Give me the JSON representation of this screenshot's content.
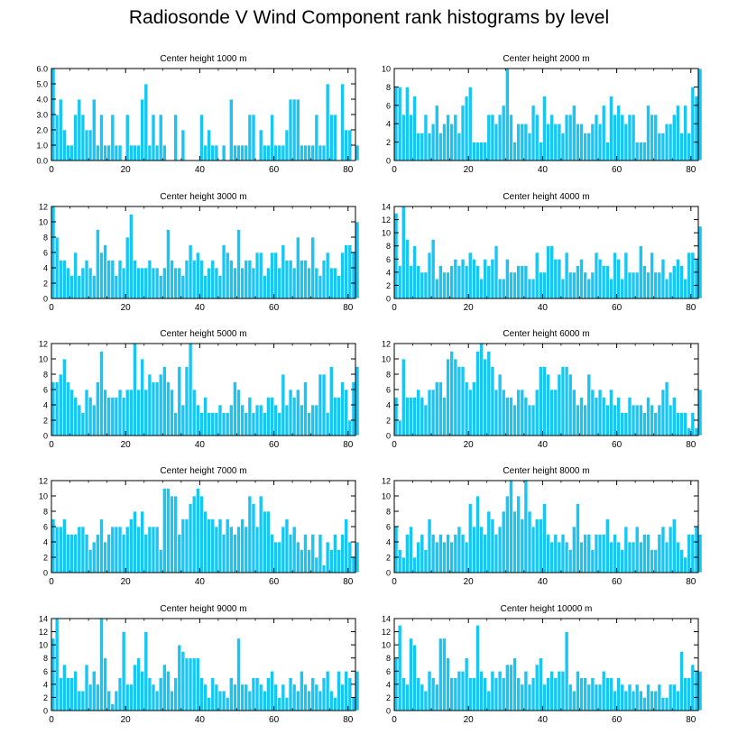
{
  "title": "Radiosonde V Wind Component rank histograms by level",
  "colors": {
    "bar": "#18c6f4",
    "bar_edge": "#ffffff",
    "axis": "#000000"
  },
  "chart_data": [
    {
      "type": "bar",
      "title": "Center height 1000 m",
      "xlim": [
        0,
        82
      ],
      "ylim": [
        0,
        6
      ],
      "xticks": [
        0,
        20,
        40,
        60,
        80
      ],
      "xtick_labels": [
        "0",
        "20",
        "40",
        "60",
        "80"
      ],
      "yticks": [
        0,
        1,
        2,
        3,
        4,
        5,
        6
      ],
      "ytick_labels": [
        "0.0",
        "1.0",
        "2.0",
        "3.0",
        "4.0",
        "5.0",
        "6.0"
      ],
      "values": [
        6,
        3,
        4,
        2,
        1,
        1,
        3,
        4,
        3,
        2,
        2,
        4,
        1,
        3,
        1,
        1,
        3,
        1,
        1,
        0,
        3,
        1,
        1,
        1,
        4,
        5,
        1,
        3,
        1,
        3,
        1,
        0,
        0,
        3,
        0,
        2,
        0,
        0,
        0,
        0,
        3,
        1,
        2,
        1,
        1,
        0,
        1,
        0,
        4,
        1,
        1,
        1,
        1,
        3,
        3,
        0,
        2,
        1,
        1,
        3,
        1,
        1,
        1,
        2,
        4,
        4,
        4,
        1,
        1,
        1,
        1,
        3,
        1,
        1,
        5,
        3,
        3,
        0,
        5,
        2,
        2,
        0,
        1
      ]
    },
    {
      "type": "bar",
      "title": "Center height 2000 m",
      "xlim": [
        0,
        82
      ],
      "ylim": [
        0,
        10
      ],
      "xticks": [
        0,
        20,
        40,
        60,
        80
      ],
      "xtick_labels": [
        "0",
        "20",
        "40",
        "60",
        "80"
      ],
      "yticks": [
        0,
        2,
        4,
        6,
        8,
        10
      ],
      "ytick_labels": [
        "0",
        "2",
        "4",
        "6",
        "8",
        "10"
      ],
      "values": [
        8,
        8,
        5,
        8,
        5,
        7,
        3,
        3,
        5,
        3,
        4,
        6,
        3,
        4,
        5,
        4,
        5,
        3,
        6,
        7,
        8,
        2,
        2,
        2,
        2,
        5,
        5,
        4,
        5,
        6,
        10,
        5,
        2,
        4,
        4,
        4,
        3,
        6,
        5,
        2,
        7,
        4,
        5,
        4,
        4,
        3,
        5,
        5,
        6,
        4,
        4,
        3,
        3,
        4,
        5,
        4,
        6,
        2,
        7,
        5,
        6,
        5,
        4,
        5,
        5,
        2,
        2,
        2,
        6,
        5,
        5,
        3,
        3,
        4,
        4,
        5,
        6,
        3,
        6,
        3,
        8,
        7,
        10
      ]
    },
    {
      "type": "bar",
      "title": "Center height 3000 m",
      "xlim": [
        0,
        82
      ],
      "ylim": [
        0,
        12
      ],
      "xticks": [
        0,
        20,
        40,
        60,
        80
      ],
      "xtick_labels": [
        "0",
        "20",
        "40",
        "60",
        "80"
      ],
      "yticks": [
        0,
        2,
        4,
        6,
        8,
        10,
        12
      ],
      "ytick_labels": [
        "0",
        "2",
        "4",
        "6",
        "8",
        "10",
        "12"
      ],
      "values": [
        12,
        8,
        5,
        5,
        4,
        3,
        6,
        3,
        4,
        5,
        4,
        3,
        9,
        6,
        7,
        5,
        5,
        3,
        5,
        4,
        8,
        11,
        5,
        4,
        4,
        4,
        5,
        4,
        4,
        3,
        4,
        9,
        5,
        4,
        4,
        3,
        5,
        7,
        5,
        6,
        5,
        3,
        4,
        5,
        4,
        3,
        7,
        6,
        5,
        4,
        9,
        4,
        5,
        5,
        4,
        6,
        6,
        3,
        4,
        6,
        6,
        4,
        7,
        5,
        5,
        4,
        8,
        5,
        5,
        4,
        8,
        4,
        3,
        5,
        6,
        4,
        4,
        3,
        6,
        7,
        7,
        6,
        10
      ]
    },
    {
      "type": "bar",
      "title": "Center height 4000 m",
      "xlim": [
        0,
        82
      ],
      "ylim": [
        0,
        14
      ],
      "xticks": [
        0,
        20,
        40,
        60,
        80
      ],
      "xtick_labels": [
        "0",
        "20",
        "40",
        "60",
        "80"
      ],
      "yticks": [
        0,
        2,
        4,
        6,
        8,
        10,
        12,
        14
      ],
      "ytick_labels": [
        "0",
        "2",
        "4",
        "6",
        "8",
        "10",
        "12",
        "14"
      ],
      "values": [
        13,
        5,
        14,
        9,
        5,
        8,
        5,
        4,
        4,
        7,
        9,
        3,
        5,
        4,
        4,
        5,
        6,
        5,
        6,
        5,
        7,
        6,
        5,
        3,
        6,
        5,
        6,
        8,
        3,
        3,
        6,
        4,
        4,
        5,
        5,
        5,
        3,
        3,
        7,
        4,
        4,
        8,
        8,
        6,
        6,
        3,
        7,
        4,
        4,
        5,
        6,
        4,
        3,
        4,
        7,
        6,
        5,
        5,
        3,
        7,
        6,
        3,
        7,
        4,
        4,
        4,
        8,
        5,
        4,
        7,
        4,
        4,
        6,
        3,
        4,
        5,
        6,
        5,
        3,
        7,
        7,
        6,
        11
      ]
    },
    {
      "type": "bar",
      "title": "Center height 5000 m",
      "xlim": [
        0,
        82
      ],
      "ylim": [
        0,
        12
      ],
      "xticks": [
        0,
        20,
        40,
        60,
        80
      ],
      "xtick_labels": [
        "0",
        "20",
        "40",
        "60",
        "80"
      ],
      "yticks": [
        0,
        2,
        4,
        6,
        8,
        10,
        12
      ],
      "ytick_labels": [
        "0",
        "2",
        "4",
        "6",
        "8",
        "10",
        "12"
      ],
      "values": [
        7,
        7,
        8,
        10,
        7,
        6,
        5,
        4,
        3,
        6,
        5,
        4,
        7,
        11,
        6,
        5,
        5,
        5,
        6,
        5,
        6,
        6,
        12,
        6,
        10,
        6,
        8,
        7,
        7,
        8,
        9,
        7,
        6,
        3,
        9,
        4,
        9,
        12,
        6,
        4,
        3,
        5,
        3,
        3,
        3,
        4,
        3,
        3,
        4,
        7,
        6,
        4,
        3,
        5,
        3,
        4,
        4,
        3,
        5,
        5,
        4,
        3,
        8,
        4,
        6,
        5,
        6,
        4,
        7,
        3,
        4,
        4,
        8,
        8,
        3,
        9,
        5,
        5,
        7,
        6,
        2,
        7,
        9
      ]
    },
    {
      "type": "bar",
      "title": "Center height 6000 m",
      "xlim": [
        0,
        82
      ],
      "ylim": [
        0,
        12
      ],
      "xticks": [
        0,
        20,
        40,
        60,
        80
      ],
      "xtick_labels": [
        "0",
        "20",
        "40",
        "60",
        "80"
      ],
      "yticks": [
        0,
        2,
        4,
        6,
        8,
        10,
        12
      ],
      "ytick_labels": [
        "0",
        "2",
        "4",
        "6",
        "8",
        "10",
        "12"
      ],
      "values": [
        5,
        2,
        10,
        5,
        5,
        5,
        6,
        5,
        4,
        6,
        6,
        7,
        7,
        5,
        10,
        11,
        10,
        9,
        9,
        7,
        6,
        7,
        11,
        12,
        10,
        11,
        9,
        6,
        8,
        6,
        5,
        5,
        4,
        6,
        6,
        5,
        4,
        4,
        6,
        9,
        9,
        8,
        6,
        6,
        8,
        9,
        9,
        8,
        6,
        4,
        5,
        4,
        8,
        6,
        5,
        6,
        5,
        4,
        6,
        4,
        5,
        3,
        3,
        5,
        4,
        4,
        4,
        3,
        5,
        4,
        3,
        4,
        6,
        7,
        4,
        5,
        3,
        3,
        3,
        1,
        3,
        1,
        6
      ]
    },
    {
      "type": "bar",
      "title": "Center height 7000 m",
      "xlim": [
        0,
        82
      ],
      "ylim": [
        0,
        12
      ],
      "xticks": [
        0,
        20,
        40,
        60,
        80
      ],
      "xtick_labels": [
        "0",
        "20",
        "40",
        "60",
        "80"
      ],
      "yticks": [
        0,
        2,
        4,
        6,
        8,
        10,
        12
      ],
      "ytick_labels": [
        "0",
        "2",
        "4",
        "6",
        "8",
        "10",
        "12"
      ],
      "values": [
        7,
        6,
        6,
        7,
        5,
        5,
        5,
        6,
        6,
        5,
        3,
        4,
        5,
        7,
        4,
        5,
        6,
        6,
        6,
        5,
        6,
        7,
        8,
        6,
        8,
        5,
        6,
        6,
        6,
        3,
        11,
        11,
        10,
        10,
        5,
        7,
        7,
        9,
        10,
        11,
        10,
        8,
        7,
        7,
        6,
        7,
        5,
        7,
        6,
        5,
        6,
        7,
        6,
        10,
        9,
        6,
        10,
        8,
        8,
        5,
        4,
        4,
        6,
        7,
        5,
        6,
        4,
        3,
        5,
        3,
        5,
        2,
        5,
        1,
        4,
        3,
        5,
        3,
        5,
        7,
        4,
        2,
        4
      ]
    },
    {
      "type": "bar",
      "title": "Center height 8000 m",
      "xlim": [
        0,
        82
      ],
      "ylim": [
        0,
        12
      ],
      "xticks": [
        0,
        20,
        40,
        60,
        80
      ],
      "xtick_labels": [
        "0",
        "20",
        "40",
        "60",
        "80"
      ],
      "yticks": [
        0,
        2,
        4,
        6,
        8,
        10,
        12
      ],
      "ytick_labels": [
        "0",
        "2",
        "4",
        "6",
        "8",
        "10",
        "12"
      ],
      "values": [
        6,
        3,
        2,
        5,
        6,
        2,
        4,
        5,
        3,
        7,
        5,
        4,
        5,
        4,
        5,
        4,
        5,
        6,
        5,
        4,
        9,
        6,
        10,
        6,
        5,
        8,
        7,
        5,
        6,
        8,
        10,
        12,
        8,
        10,
        7,
        12,
        8,
        6,
        7,
        7,
        9,
        5,
        4,
        5,
        4,
        5,
        4,
        3,
        6,
        9,
        4,
        5,
        5,
        3,
        5,
        5,
        5,
        7,
        4,
        5,
        4,
        3,
        6,
        4,
        4,
        6,
        4,
        5,
        5,
        3,
        3,
        5,
        6,
        4,
        6,
        7,
        4,
        3,
        2,
        5,
        5,
        6,
        5
      ]
    },
    {
      "type": "bar",
      "title": "Center height 9000 m",
      "xlim": [
        0,
        82
      ],
      "ylim": [
        0,
        14
      ],
      "xticks": [
        0,
        20,
        40,
        60,
        80
      ],
      "xtick_labels": [
        "0",
        "20",
        "40",
        "60",
        "80"
      ],
      "yticks": [
        0,
        2,
        4,
        6,
        8,
        10,
        12,
        14
      ],
      "ytick_labels": [
        "0",
        "2",
        "4",
        "6",
        "8",
        "10",
        "12",
        "14"
      ],
      "values": [
        11,
        14,
        5,
        7,
        5,
        5,
        6,
        3,
        3,
        7,
        4,
        6,
        4,
        14,
        8,
        3,
        1,
        3,
        5,
        12,
        4,
        4,
        7,
        8,
        6,
        12,
        5,
        4,
        3,
        5,
        7,
        6,
        3,
        5,
        10,
        9,
        8,
        8,
        8,
        8,
        5,
        4,
        2,
        5,
        4,
        3,
        3,
        2,
        5,
        4,
        11,
        4,
        4,
        3,
        5,
        5,
        4,
        3,
        5,
        6,
        4,
        2,
        4,
        2,
        5,
        4,
        3,
        6,
        4,
        3,
        5,
        4,
        3,
        5,
        6,
        3,
        2,
        6,
        4,
        6,
        5,
        2,
        6
      ]
    },
    {
      "type": "bar",
      "title": "Center height 10000 m",
      "xlim": [
        0,
        82
      ],
      "ylim": [
        0,
        14
      ],
      "xticks": [
        0,
        20,
        40,
        60,
        80
      ],
      "xtick_labels": [
        "0",
        "20",
        "40",
        "60",
        "80"
      ],
      "yticks": [
        0,
        2,
        4,
        6,
        8,
        10,
        12,
        14
      ],
      "ytick_labels": [
        "0",
        "2",
        "4",
        "6",
        "8",
        "10",
        "12",
        "14"
      ],
      "values": [
        8,
        13,
        5,
        4,
        11,
        10,
        5,
        4,
        3,
        6,
        5,
        4,
        11,
        11,
        8,
        5,
        5,
        6,
        6,
        8,
        5,
        5,
        13,
        6,
        5,
        3,
        6,
        5,
        6,
        5,
        7,
        7,
        8,
        5,
        4,
        6,
        4,
        5,
        7,
        8,
        4,
        5,
        6,
        5,
        6,
        6,
        12,
        4,
        3,
        6,
        5,
        5,
        4,
        5,
        4,
        4,
        6,
        5,
        5,
        3,
        5,
        4,
        3,
        4,
        3,
        4,
        3,
        2,
        4,
        3,
        3,
        4,
        2,
        2,
        4,
        4,
        3,
        9,
        5,
        5,
        7,
        6,
        6
      ]
    }
  ]
}
